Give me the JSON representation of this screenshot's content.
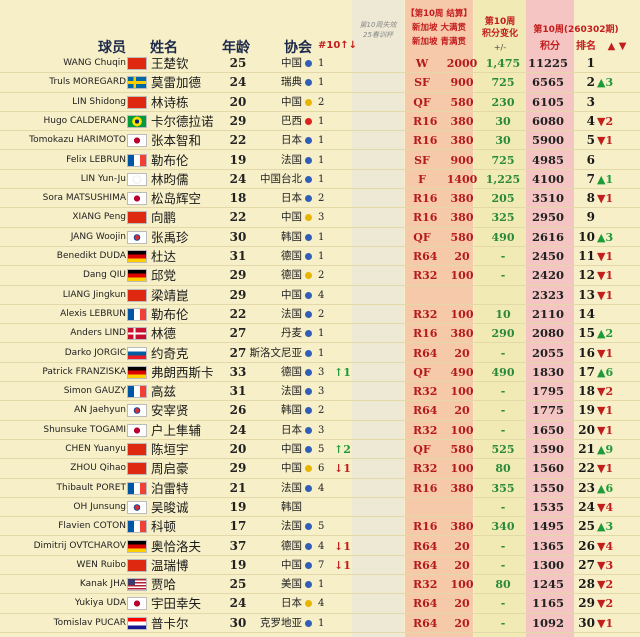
{
  "header": {
    "col_player": "球员",
    "col_name": "姓名",
    "col_age": "年龄",
    "col_assoc": "协会",
    "col_top10": "#10↑↓",
    "col_lost": "第10周失效\n25春训杯",
    "col_week10_title": "【第10周 结算】",
    "col_singapore_grand": "新加坡 大满贯",
    "col_singapore_youth": "新加坡 青满贯",
    "col_change_title": "第10周\n积分变化",
    "col_change_sign": "+/-",
    "col_week10_rank_title": "第10周(260302期)",
    "col_points": "积分",
    "col_rank": "排名",
    "col_arrows": "▲ ▼"
  },
  "colors": {
    "up": "#1f9a3a",
    "down": "#c31e1e",
    "points_red": "#b31b1b",
    "change_green": "#2a8a3a"
  },
  "players": [
    {
      "en": "WANG Chuqin",
      "flag": "china",
      "cn": "王楚钦",
      "age": "25",
      "assoc": "中国",
      "dot": "blue",
      "top10": "1",
      "trend": "",
      "result": "W",
      "pts": "2000",
      "change": "1,475",
      "total": "11225",
      "rank": "1",
      "move": ""
    },
    {
      "en": "Truls MOREGARD",
      "flag": "sweden",
      "cn": "莫雷加德",
      "age": "24",
      "assoc": "瑞典",
      "dot": "blue",
      "top10": "1",
      "trend": "",
      "result": "SF",
      "pts": "900",
      "change": "725",
      "total": "6565",
      "rank": "2",
      "move": "▲3"
    },
    {
      "en": "LIN Shidong",
      "flag": "china",
      "cn": "林诗栋",
      "age": "20",
      "assoc": "中国",
      "dot": "yellow",
      "top10": "2",
      "trend": "",
      "result": "QF",
      "pts": "580",
      "change": "230",
      "total": "6105",
      "rank": "3",
      "move": ""
    },
    {
      "en": "Hugo CALDERANO",
      "flag": "brazil",
      "cn": "卡尔德拉诺",
      "age": "29",
      "assoc": "巴西",
      "dot": "red",
      "top10": "1",
      "trend": "",
      "result": "R16",
      "pts": "380",
      "change": "30",
      "total": "6080",
      "rank": "4",
      "move": "▼2"
    },
    {
      "en": "Tomokazu HARIMOTO",
      "flag": "japan",
      "cn": "张本智和",
      "age": "22",
      "assoc": "日本",
      "dot": "blue",
      "top10": "1",
      "trend": "",
      "result": "R16",
      "pts": "380",
      "change": "30",
      "total": "5900",
      "rank": "5",
      "move": "▼1"
    },
    {
      "en": "Felix LEBRUN",
      "flag": "france",
      "cn": "勒布伦",
      "age": "19",
      "assoc": "法国",
      "dot": "blue",
      "top10": "1",
      "trend": "",
      "result": "SF",
      "pts": "900",
      "change": "725",
      "total": "4985",
      "rank": "6",
      "move": ""
    },
    {
      "en": "LIN Yun-Ju",
      "flag": "tpe",
      "cn": "林昀儒",
      "age": "24",
      "assoc": "中国台北",
      "dot": "blue",
      "top10": "1",
      "trend": "",
      "result": "F",
      "pts": "1400",
      "change": "1,225",
      "total": "4100",
      "rank": "7",
      "move": "▲1"
    },
    {
      "en": "Sora MATSUSHIMA",
      "flag": "japan",
      "cn": "松岛辉空",
      "age": "18",
      "assoc": "日本",
      "dot": "blue",
      "top10": "2",
      "trend": "",
      "result": "R16",
      "pts": "380",
      "change": "205",
      "total": "3510",
      "rank": "8",
      "move": "▼1"
    },
    {
      "en": "XIANG Peng",
      "flag": "china",
      "cn": "向鹏",
      "age": "22",
      "assoc": "中国",
      "dot": "yellow",
      "top10": "3",
      "trend": "",
      "result": "R16",
      "pts": "380",
      "change": "325",
      "total": "2950",
      "rank": "9",
      "move": ""
    },
    {
      "en": "JANG Woojin",
      "flag": "korea",
      "cn": "张禹珍",
      "age": "30",
      "assoc": "韩国",
      "dot": "blue",
      "top10": "1",
      "trend": "",
      "result": "QF",
      "pts": "580",
      "change": "490",
      "total": "2616",
      "rank": "10",
      "move": "▲3"
    },
    {
      "en": "Benedikt DUDA",
      "flag": "germany",
      "cn": "杜达",
      "age": "31",
      "assoc": "德国",
      "dot": "blue",
      "top10": "1",
      "trend": "",
      "result": "R64",
      "pts": "20",
      "change": "-",
      "total": "2450",
      "rank": "11",
      "move": "▼1"
    },
    {
      "en": "Dang QIU",
      "flag": "germany",
      "cn": "邱党",
      "age": "29",
      "assoc": "德国",
      "dot": "yellow",
      "top10": "2",
      "trend": "",
      "result": "R32",
      "pts": "100",
      "change": "-",
      "total": "2420",
      "rank": "12",
      "move": "▼1"
    },
    {
      "en": "LIANG Jingkun",
      "flag": "china",
      "cn": "梁靖崑",
      "age": "29",
      "assoc": "中国",
      "dot": "blue",
      "top10": "4",
      "trend": "",
      "result": "",
      "pts": "",
      "change": "",
      "total": "2323",
      "rank": "13",
      "move": "▼1"
    },
    {
      "en": "Alexis LEBRUN",
      "flag": "france",
      "cn": "勒布伦",
      "age": "22",
      "assoc": "法国",
      "dot": "blue",
      "top10": "2",
      "trend": "",
      "result": "R32",
      "pts": "100",
      "change": "10",
      "total": "2110",
      "rank": "14",
      "move": ""
    },
    {
      "en": "Anders LIND",
      "flag": "denmark",
      "cn": "林德",
      "age": "27",
      "assoc": "丹麦",
      "dot": "blue",
      "top10": "1",
      "trend": "",
      "result": "R16",
      "pts": "380",
      "change": "290",
      "total": "2080",
      "rank": "15",
      "move": "▲2"
    },
    {
      "en": "Darko JORGIC",
      "flag": "slovenia",
      "cn": "约奇克",
      "age": "27",
      "assoc": "斯洛文尼亚",
      "dot": "blue",
      "top10": "1",
      "trend": "",
      "result": "R64",
      "pts": "20",
      "change": "-",
      "total": "2055",
      "rank": "16",
      "move": "▼1"
    },
    {
      "en": "Patrick FRANZISKA",
      "flag": "germany",
      "cn": "弗朗西斯卡",
      "age": "33",
      "assoc": "德国",
      "dot": "blue",
      "top10": "3",
      "trend": "↑1",
      "result": "QF",
      "pts": "490",
      "change": "490",
      "total": "1830",
      "rank": "17",
      "move": "▲6"
    },
    {
      "en": "Simon GAUZY",
      "flag": "france",
      "cn": "高兹",
      "age": "31",
      "assoc": "法国",
      "dot": "blue",
      "top10": "3",
      "trend": "",
      "result": "R32",
      "pts": "100",
      "change": "-",
      "total": "1795",
      "rank": "18",
      "move": "▼2"
    },
    {
      "en": "AN Jaehyun",
      "flag": "korea",
      "cn": "安宰贤",
      "age": "26",
      "assoc": "韩国",
      "dot": "blue",
      "top10": "2",
      "trend": "",
      "result": "R64",
      "pts": "20",
      "change": "-",
      "total": "1775",
      "rank": "19",
      "move": "▼1"
    },
    {
      "en": "Shunsuke TOGAMI",
      "flag": "japan",
      "cn": "户上隼辅",
      "age": "24",
      "assoc": "日本",
      "dot": "blue",
      "top10": "3",
      "trend": "",
      "result": "R32",
      "pts": "100",
      "change": "-",
      "total": "1650",
      "rank": "20",
      "move": "▼1"
    },
    {
      "en": "CHEN Yuanyu",
      "flag": "china",
      "cn": "陈垣宇",
      "age": "20",
      "assoc": "中国",
      "dot": "blue",
      "top10": "5",
      "trend": "↑2",
      "result": "QF",
      "pts": "580",
      "change": "525",
      "total": "1590",
      "rank": "21",
      "move": "▲9"
    },
    {
      "en": "ZHOU Qihao",
      "flag": "china",
      "cn": "周启豪",
      "age": "29",
      "assoc": "中国",
      "dot": "yellow",
      "top10": "6",
      "trend": "↓1",
      "result": "R32",
      "pts": "100",
      "change": "80",
      "total": "1560",
      "rank": "22",
      "move": "▼1"
    },
    {
      "en": "Thibault PORET",
      "flag": "france",
      "cn": "泊雷特",
      "age": "21",
      "assoc": "法国",
      "dot": "blue",
      "top10": "4",
      "trend": "",
      "result": "R16",
      "pts": "380",
      "change": "355",
      "total": "1550",
      "rank": "23",
      "move": "▲6"
    },
    {
      "en": "OH Junsung",
      "flag": "korea",
      "cn": "吴晙诚",
      "age": "19",
      "assoc": "韩国",
      "dot": "none",
      "top10": "",
      "trend": "",
      "result": "",
      "pts": "",
      "change": "-",
      "total": "1535",
      "rank": "24",
      "move": "▼4"
    },
    {
      "en": "Flavien COTON",
      "flag": "france",
      "cn": "科顿",
      "age": "17",
      "assoc": "法国",
      "dot": "blue",
      "top10": "5",
      "trend": "",
      "result": "R16",
      "pts": "380",
      "change": "340",
      "total": "1495",
      "rank": "25",
      "move": "▲3"
    },
    {
      "en": "Dimitrij OVTCHAROV",
      "flag": "germany",
      "cn": "奥恰洛夫",
      "age": "37",
      "assoc": "德国",
      "dot": "blue",
      "top10": "4",
      "trend": "↓1",
      "result": "R64",
      "pts": "20",
      "change": "-",
      "total": "1365",
      "rank": "26",
      "move": "▼4"
    },
    {
      "en": "WEN Ruibo",
      "flag": "china",
      "cn": "温瑞博",
      "age": "19",
      "assoc": "中国",
      "dot": "blue",
      "top10": "7",
      "trend": "↓1",
      "result": "R64",
      "pts": "20",
      "change": "-",
      "total": "1300",
      "rank": "27",
      "move": "▼3"
    },
    {
      "en": "Kanak JHA",
      "flag": "usa",
      "cn": "贾哈",
      "age": "25",
      "assoc": "美国",
      "dot": "blue",
      "top10": "1",
      "trend": "",
      "result": "R32",
      "pts": "100",
      "change": "80",
      "total": "1245",
      "rank": "28",
      "move": "▼2"
    },
    {
      "en": "Yukiya UDA",
      "flag": "japan",
      "cn": "宇田幸矢",
      "age": "24",
      "assoc": "日本",
      "dot": "yellow",
      "top10": "4",
      "trend": "",
      "result": "R64",
      "pts": "20",
      "change": "-",
      "total": "1165",
      "rank": "29",
      "move": "▼2"
    },
    {
      "en": "Tomislav PUCAR",
      "flag": "croatia",
      "cn": "普卡尔",
      "age": "30",
      "assoc": "克罗地亚",
      "dot": "blue",
      "top10": "1",
      "trend": "",
      "result": "R64",
      "pts": "20",
      "change": "-",
      "total": "1092",
      "rank": "30",
      "move": "▼1"
    }
  ]
}
